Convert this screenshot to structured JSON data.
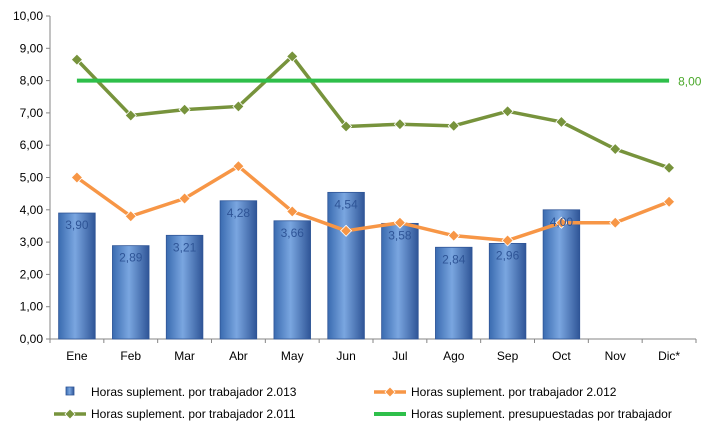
{
  "chart_data": {
    "type": "bar",
    "categories": [
      "Ene",
      "Feb",
      "Mar",
      "Abr",
      "May",
      "Jun",
      "Jul",
      "Ago",
      "Sep",
      "Oct",
      "Nov",
      "Dic*"
    ],
    "ylim": [
      0,
      10
    ],
    "yticks": [
      "0,00",
      "1,00",
      "2,00",
      "3,00",
      "4,00",
      "5,00",
      "6,00",
      "7,00",
      "8,00",
      "9,00",
      "10,00"
    ],
    "grid": false,
    "legend_position": "bottom",
    "series": [
      {
        "name": "Horas suplement. por trabajador 2.013",
        "kind": "bar",
        "color": "#4f81bd",
        "values": [
          3.9,
          2.89,
          3.21,
          4.28,
          3.66,
          4.54,
          3.58,
          2.84,
          2.96,
          4.0,
          null,
          null
        ],
        "labels": [
          "3,90",
          "2,89",
          "3,21",
          "4,28",
          "3,66",
          "4,54",
          "3,58",
          "2,84",
          "2,96",
          "4,00",
          "",
          ""
        ]
      },
      {
        "name": "Horas suplement. por trabajador 2.012",
        "kind": "line",
        "color": "#f79646",
        "values": [
          5.0,
          3.8,
          4.35,
          5.35,
          3.95,
          3.35,
          3.6,
          3.2,
          3.05,
          3.6,
          3.6,
          4.25
        ]
      },
      {
        "name": "Horas suplement. por trabajador 2.011",
        "kind": "line",
        "color": "#77933c",
        "values": [
          8.65,
          6.92,
          7.1,
          7.2,
          8.75,
          6.58,
          6.65,
          6.6,
          7.05,
          6.72,
          5.88,
          5.3
        ]
      },
      {
        "name": "Horas suplement. presupuestadas por trabajador",
        "kind": "line",
        "color": "#2ebf4a",
        "values": [
          8,
          8,
          8,
          8,
          8,
          8,
          8,
          8,
          8,
          8,
          8,
          8
        ],
        "end_label": "8,00"
      }
    ]
  }
}
